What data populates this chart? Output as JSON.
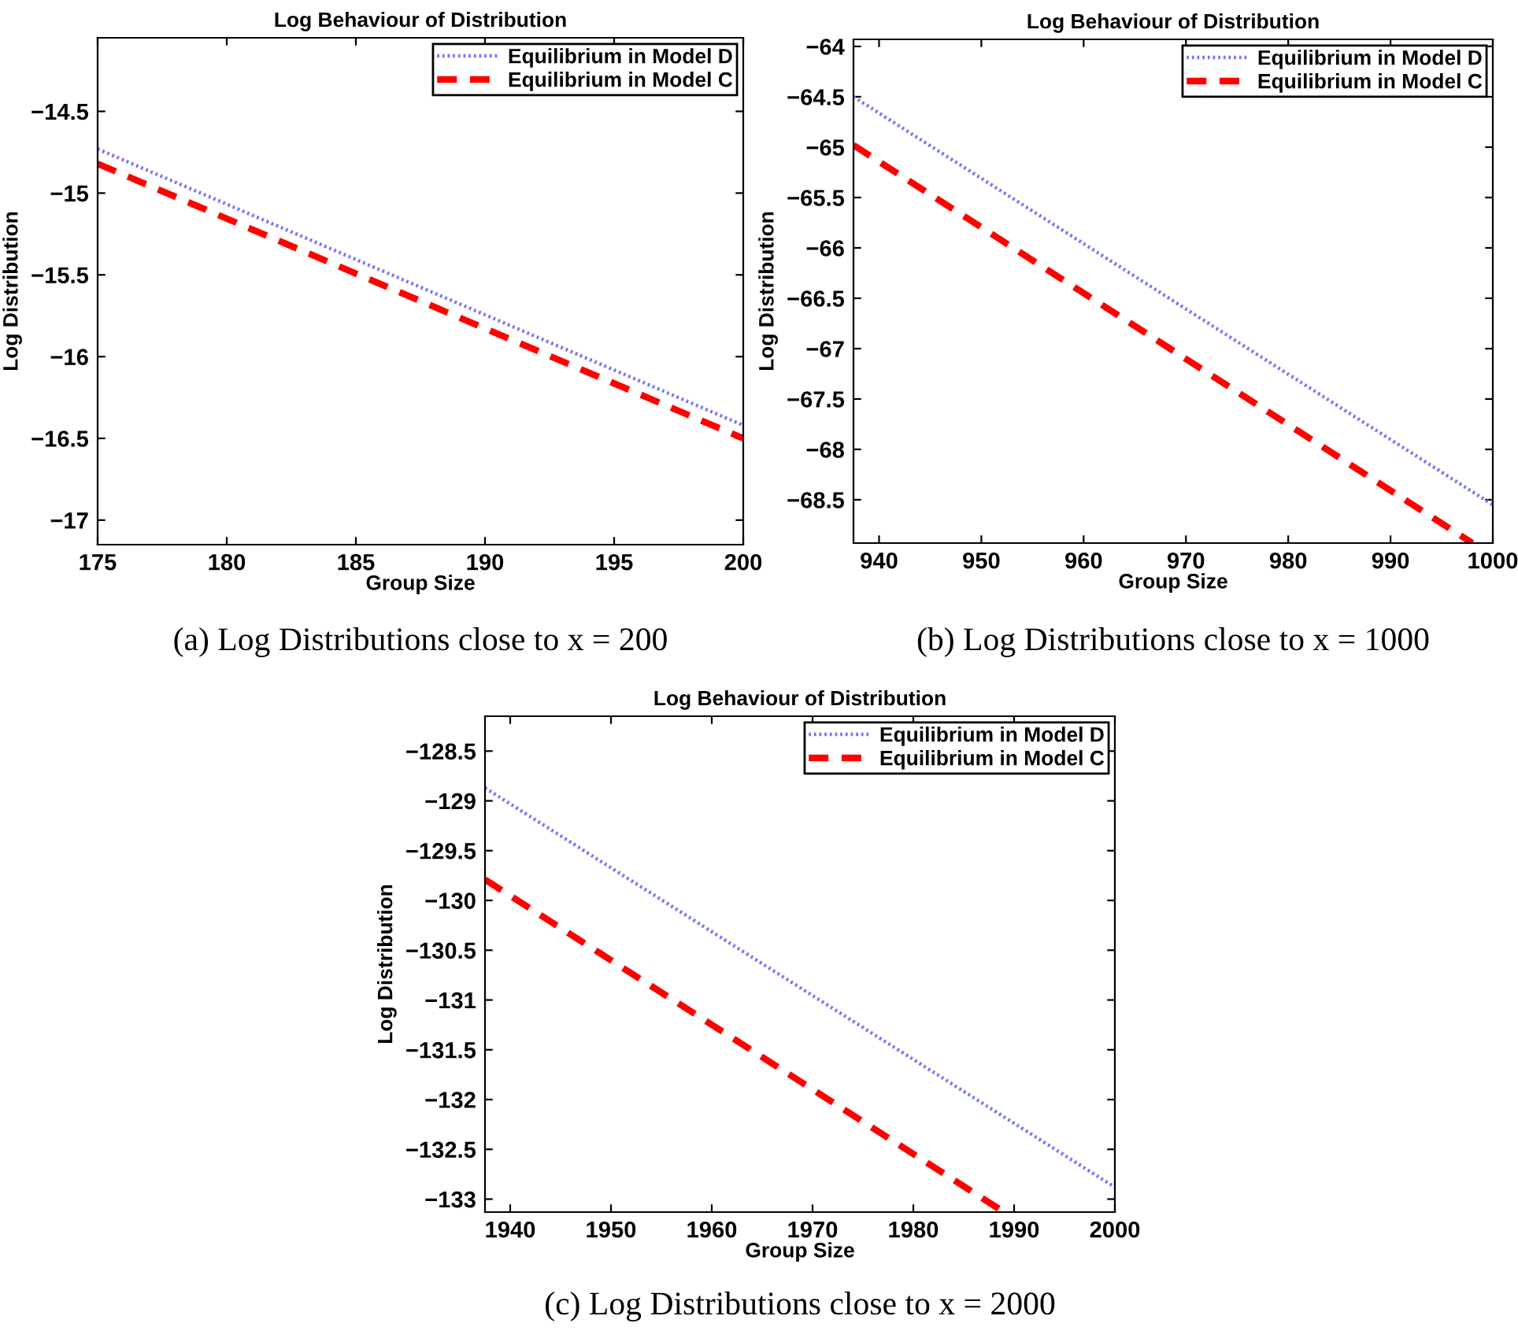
{
  "chart_data": [
    {
      "type": "line",
      "title": "Log Behaviour of Distribution",
      "xlabel": "Group Size",
      "ylabel": "Log Distribution",
      "annotations": [
        "(a) Log Distributions close to x = 200"
      ],
      "x": [
        175,
        200
      ],
      "series": [
        {
          "name": "Equilibrium in Model D",
          "color": "#7070ff",
          "line_style": "dotted",
          "values": [
            -14.73,
            -16.42
          ]
        },
        {
          "name": "Equilibrium in Model C",
          "color": "#ff0000",
          "line_style": "dashed",
          "values": [
            -14.82,
            -16.5
          ]
        }
      ],
      "xlim": [
        175,
        200
      ],
      "xticks": [
        175,
        180,
        185,
        190,
        195,
        200
      ],
      "ylim": [
        -17.15,
        -14.05
      ],
      "yticks": [
        -17,
        -16.5,
        -16,
        -15.5,
        -15,
        -14.5
      ],
      "grid": false,
      "legend": "top right"
    },
    {
      "type": "line",
      "title": "Log Behaviour of Distribution",
      "xlabel": "Group Size",
      "ylabel": "Log Distribution",
      "annotations": [
        "(b) Log Distributions close to x = 1000"
      ],
      "series": [
        {
          "name": "Equilibrium in Model D",
          "color": "#7070ff",
          "line_style": "dotted",
          "x": [
            937.5,
            1000
          ],
          "values": [
            -64.5,
            -68.55
          ]
        },
        {
          "name": "Equilibrium in Model C",
          "color": "#ff0000",
          "line_style": "dashed",
          "x": [
            937.5,
            998
          ],
          "values": [
            -64.98,
            -68.93
          ]
        }
      ],
      "xlim": [
        937.5,
        1000
      ],
      "xticks": [
        940,
        950,
        960,
        970,
        980,
        990,
        1000
      ],
      "ylim": [
        -68.93,
        -63.93
      ],
      "yticks": [
        -68.5,
        -68,
        -67.5,
        -67,
        -66.5,
        -66,
        -65.5,
        -65,
        -64.5,
        -64
      ],
      "grid": false,
      "legend": "top right"
    },
    {
      "type": "line",
      "title": "Log Behaviour of Distribution",
      "xlabel": "Group Size",
      "ylabel": "Log Distribution",
      "annotations": [
        "(c) Log Distributions close to x = 2000"
      ],
      "series": [
        {
          "name": "Equilibrium in Model D",
          "color": "#7070ff",
          "line_style": "dotted",
          "x": [
            1937.5,
            2000
          ],
          "values": [
            -128.87,
            -132.88
          ]
        },
        {
          "name": "Equilibrium in Model C",
          "color": "#ff0000",
          "line_style": "dashed",
          "x": [
            1937.5,
            1989
          ],
          "values": [
            -129.79,
            -133.13
          ]
        }
      ],
      "xlim": [
        1937.5,
        2000
      ],
      "xticks": [
        1940,
        1950,
        1960,
        1970,
        1980,
        1990,
        2000
      ],
      "ylim": [
        -133.13,
        -128.15
      ],
      "yticks": [
        -133,
        -132.5,
        -132,
        -131.5,
        -131,
        -130.5,
        -130,
        -129.5,
        -129,
        -128.5
      ],
      "grid": false,
      "legend": "top right"
    }
  ]
}
